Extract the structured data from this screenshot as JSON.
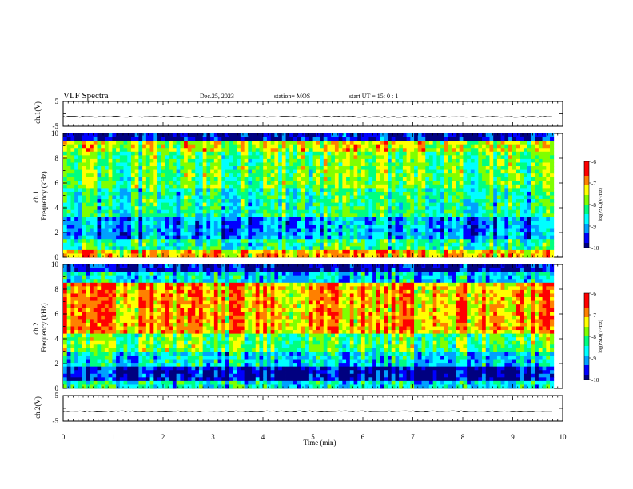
{
  "header": {
    "title": "VLF Spectra",
    "date": "Dec.25, 2023",
    "station": "station= MOS",
    "start": "start  UT =   15: 0  : 1"
  },
  "colorbar": {
    "label": "log(PSD)(V²/Hz)",
    "ticks": [
      "-6",
      "-7",
      "-8",
      "-9",
      "-10"
    ]
  },
  "chart_data": [
    {
      "type": "line",
      "panel": "ch1-waveform",
      "ylabel": "ch.1(V)",
      "ylim": [
        -5,
        5
      ],
      "yticks": [
        "5",
        "-5"
      ],
      "approx_level": -1.2
    },
    {
      "type": "heatmap",
      "panel": "ch1-spectrogram",
      "ylabel": "ch.1 Frequency (kHz)",
      "ylim": [
        0,
        10
      ],
      "yticks": [
        "0",
        "2",
        "4",
        "6",
        "8",
        "10"
      ],
      "zlim": [
        -10,
        -6
      ]
    },
    {
      "type": "heatmap",
      "panel": "ch2-spectrogram",
      "ylabel": "ch.2 Frequency (kHz)",
      "ylim": [
        0,
        10
      ],
      "yticks": [
        "0",
        "2",
        "4",
        "6",
        "8",
        "10"
      ],
      "zlim": [
        -10,
        -6
      ]
    },
    {
      "type": "line",
      "panel": "ch2-waveform",
      "ylabel": "ch.2(V)",
      "ylim": [
        -5,
        5
      ],
      "yticks": [
        "5",
        "-5"
      ],
      "approx_level": -1.2
    }
  ],
  "xaxis": {
    "label": "Time  (min)",
    "xlim": [
      0,
      10
    ],
    "ticks": [
      "0",
      "1",
      "2",
      "3",
      "4",
      "5",
      "6",
      "7",
      "8",
      "9",
      "10"
    ]
  },
  "colors": {
    "scale": [
      "#000080",
      "#0000ff",
      "#00a0ff",
      "#00ffff",
      "#00ff80",
      "#80ff00",
      "#ffff00",
      "#ff8000",
      "#ff0000"
    ]
  }
}
